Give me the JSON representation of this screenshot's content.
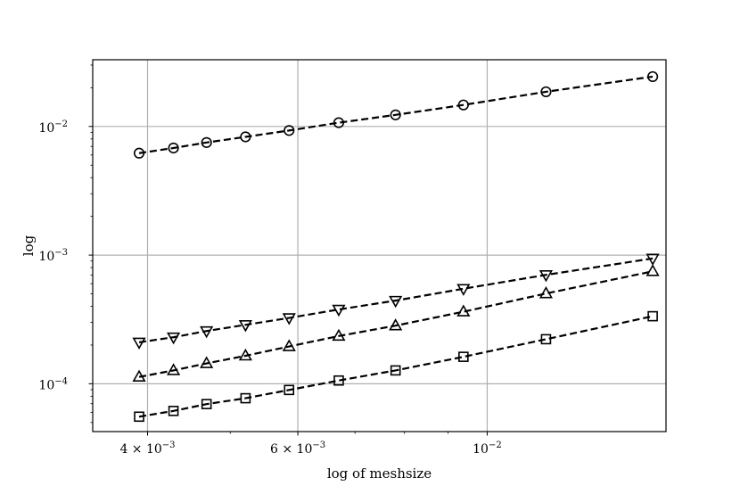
{
  "chart_data": {
    "type": "line",
    "title": "",
    "xlabel": "log of meshsize",
    "ylabel": "log",
    "xscale": "log",
    "yscale": "log",
    "xlim": [
      0.00345,
      0.0162
    ],
    "ylim": [
      4.25e-05,
      0.033
    ],
    "grid": true,
    "legend": "none",
    "x_ticks": [
      {
        "value": 0.004,
        "label": "4 × 10",
        "exp": "−3"
      },
      {
        "value": 0.006,
        "label": "6 × 10",
        "exp": "−3"
      },
      {
        "value": 0.01,
        "label": "10",
        "exp": "−2"
      }
    ],
    "y_ticks": [
      {
        "value": 0.0001,
        "label": "10",
        "exp": "−4"
      },
      {
        "value": 0.001,
        "label": "10",
        "exp": "−3"
      },
      {
        "value": 0.01,
        "label": "10",
        "exp": "−2"
      }
    ],
    "x": [
      0.00391,
      0.00429,
      0.00469,
      0.00521,
      0.00586,
      0.0067,
      0.00781,
      0.00938,
      0.01172,
      0.01563
    ],
    "series": [
      {
        "marker": "circle",
        "values": [
          0.0062,
          0.0068,
          0.0075,
          0.0083,
          0.0093,
          0.0107,
          0.0123,
          0.0147,
          0.0186,
          0.0244
        ]
      },
      {
        "marker": "triangle-down",
        "values": [
          0.00021,
          0.00023,
          0.000257,
          0.000287,
          0.000325,
          0.000378,
          0.000443,
          0.000548,
          0.000702,
          0.000942
        ]
      },
      {
        "marker": "triangle-up",
        "values": [
          0.000113,
          0.000127,
          0.000144,
          0.000165,
          0.000195,
          0.000235,
          0.000283,
          0.000363,
          0.000503,
          0.000748
        ]
      },
      {
        "marker": "square",
        "values": [
          5.55e-05,
          6.15e-05,
          6.95e-05,
          7.72e-05,
          8.95e-05,
          0.000106,
          0.000127,
          0.000162,
          0.000222,
          0.000335
        ]
      }
    ]
  }
}
